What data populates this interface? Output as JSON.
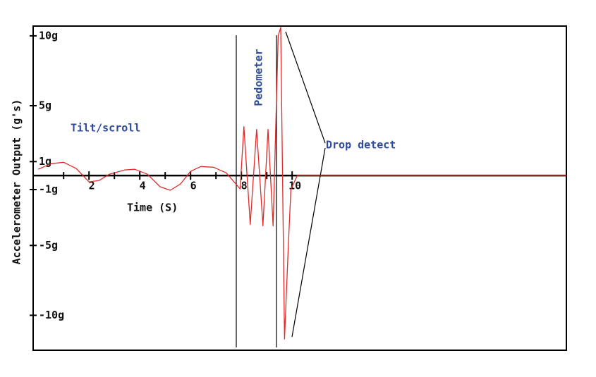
{
  "chart_data": {
    "type": "line",
    "x_label": "Time (S)",
    "y_label": "Accelerometer Output (g's)",
    "annotations": [
      "Tilt/scroll",
      "Pedometer",
      "Drop detect"
    ],
    "x": [
      0,
      0.5,
      1,
      1.5,
      2,
      2.4,
      2.8,
      3.4,
      3.8,
      4.3,
      4.8,
      5.2,
      5.6,
      6,
      6.4,
      6.9,
      7.4,
      7.95,
      8.1,
      8.35,
      8.6,
      8.85,
      9.05,
      9.25,
      9.45,
      9.55,
      9.7,
      9.85,
      9.95,
      10.2,
      20.8
    ],
    "series": [
      {
        "color": "#e02a2a",
        "values": [
          0.45,
          0.85,
          0.95,
          0.5,
          -0.45,
          -0.35,
          0.1,
          0.4,
          0.45,
          0.1,
          -0.8,
          -1.05,
          -0.6,
          0.3,
          0.65,
          0.6,
          0.2,
          -0.95,
          3.5,
          -3.5,
          3.3,
          -3.6,
          3.3,
          -3.6,
          10,
          10.6,
          -11.7,
          -5,
          -1,
          0,
          0
        ]
      }
    ],
    "xlim": [
      -0.2,
      20.8
    ],
    "xticks": [
      2,
      4,
      6,
      8,
      10
    ],
    "xminorticks": [
      1,
      3,
      5,
      7,
      9
    ],
    "ylim": [
      -12.5,
      10.7
    ],
    "yticks": [
      {
        "value": -10,
        "label": "-10g"
      },
      {
        "value": -5,
        "label": "-5g"
      },
      {
        "value": -1,
        "label": "-1g"
      },
      {
        "value": 1,
        "label": "1g"
      },
      {
        "value": 5,
        "label": "5g"
      },
      {
        "value": 10,
        "label": "10g"
      }
    ]
  }
}
